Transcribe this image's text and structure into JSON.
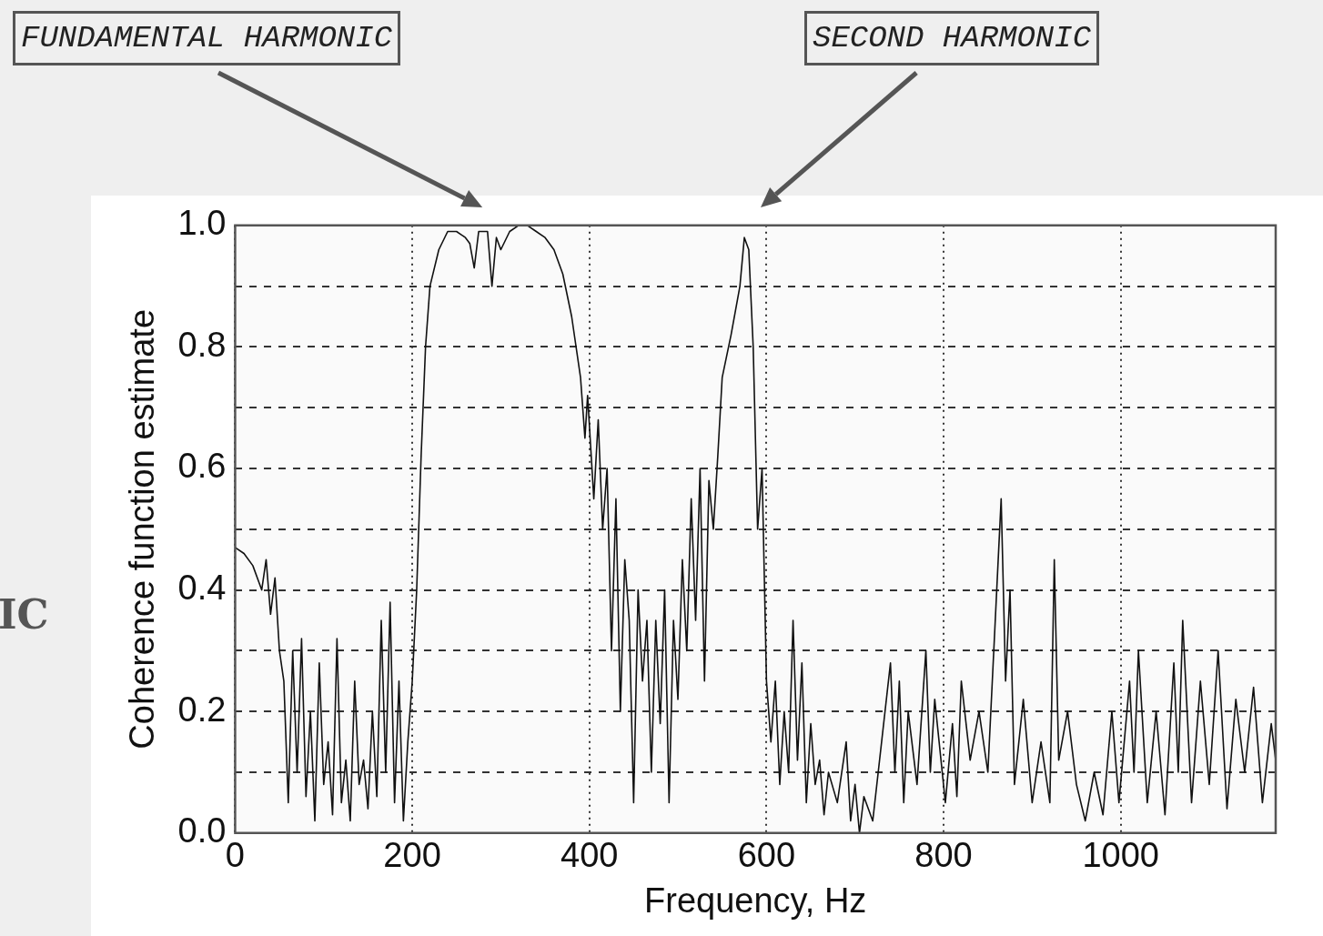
{
  "chart_data": {
    "type": "line",
    "xlabel": "Frequency, Hz",
    "ylabel": "Coherence function estimate",
    "xlim": [
      0,
      1175
    ],
    "ylim": [
      0,
      1.0
    ],
    "xticks": [
      0,
      200,
      400,
      600,
      800,
      1000
    ],
    "yticks": [
      {
        "value": 0,
        "label": "0.0"
      },
      {
        "value": 0.1,
        "label": null
      },
      {
        "value": 0.2,
        "label": "0.2"
      },
      {
        "value": 0.3,
        "label": null
      },
      {
        "value": 0.4,
        "label": "0.4"
      },
      {
        "value": 0.5,
        "label": null
      },
      {
        "value": 0.6,
        "label": "0.6"
      },
      {
        "value": 0.7,
        "label": null
      },
      {
        "value": 0.8,
        "label": "0.8"
      },
      {
        "value": 0.9,
        "label": null
      },
      {
        "value": 1.0,
        "label": "1.0"
      }
    ],
    "grid": true,
    "legend": false,
    "marker": "none",
    "line_style": "solid",
    "annotations": [
      "FUNDAMENTAL HARMONIC",
      "SECOND HARMONIC",
      "IC"
    ],
    "series": [
      {
        "color": "#111111",
        "x": [
          0,
          10,
          20,
          30,
          35,
          40,
          45,
          50,
          55,
          60,
          65,
          70,
          75,
          80,
          85,
          90,
          95,
          100,
          105,
          110,
          115,
          120,
          125,
          130,
          135,
          140,
          145,
          150,
          155,
          160,
          165,
          170,
          175,
          180,
          185,
          190,
          195,
          200,
          205,
          210,
          215,
          220,
          230,
          240,
          250,
          260,
          265,
          270,
          275,
          285,
          290,
          295,
          300,
          310,
          320,
          330,
          340,
          350,
          360,
          370,
          380,
          390,
          395,
          398,
          405,
          410,
          415,
          420,
          425,
          430,
          435,
          440,
          445,
          450,
          455,
          460,
          465,
          470,
          475,
          480,
          485,
          490,
          495,
          500,
          505,
          510,
          515,
          520,
          525,
          530,
          535,
          540,
          545,
          550,
          560,
          570,
          575,
          580,
          585,
          590,
          595,
          600,
          605,
          610,
          615,
          620,
          625,
          630,
          635,
          640,
          645,
          650,
          655,
          660,
          665,
          670,
          680,
          690,
          695,
          700,
          705,
          710,
          720,
          730,
          740,
          745,
          750,
          755,
          760,
          770,
          780,
          785,
          790,
          802,
          810,
          815,
          820,
          830,
          840,
          850,
          860,
          865,
          870,
          875,
          880,
          890,
          900,
          910,
          920,
          925,
          930,
          940,
          950,
          960,
          970,
          980,
          990,
          998,
          1010,
          1015,
          1020,
          1030,
          1040,
          1050,
          1060,
          1065,
          1070,
          1080,
          1090,
          1100,
          1110,
          1120,
          1130,
          1140,
          1150,
          1160,
          1170,
          1175
        ],
        "values": [
          0.47,
          0.46,
          0.44,
          0.4,
          0.45,
          0.36,
          0.42,
          0.3,
          0.25,
          0.05,
          0.3,
          0.1,
          0.32,
          0.06,
          0.2,
          0.02,
          0.28,
          0.08,
          0.15,
          0.03,
          0.32,
          0.05,
          0.12,
          0.02,
          0.25,
          0.08,
          0.12,
          0.04,
          0.2,
          0.06,
          0.35,
          0.1,
          0.38,
          0.05,
          0.25,
          0.02,
          0.15,
          0.25,
          0.4,
          0.62,
          0.8,
          0.9,
          0.96,
          0.99,
          0.99,
          0.98,
          0.97,
          0.93,
          0.99,
          0.99,
          0.9,
          0.98,
          0.96,
          0.99,
          1.0,
          1.0,
          0.99,
          0.98,
          0.96,
          0.92,
          0.85,
          0.75,
          0.65,
          0.72,
          0.55,
          0.68,
          0.5,
          0.6,
          0.3,
          0.55,
          0.2,
          0.45,
          0.35,
          0.05,
          0.4,
          0.25,
          0.35,
          0.1,
          0.35,
          0.18,
          0.4,
          0.05,
          0.35,
          0.22,
          0.45,
          0.3,
          0.55,
          0.35,
          0.6,
          0.25,
          0.58,
          0.5,
          0.62,
          0.75,
          0.82,
          0.9,
          0.98,
          0.96,
          0.8,
          0.5,
          0.6,
          0.25,
          0.15,
          0.25,
          0.08,
          0.2,
          0.1,
          0.35,
          0.12,
          0.28,
          0.05,
          0.18,
          0.08,
          0.12,
          0.03,
          0.1,
          0.05,
          0.15,
          0.02,
          0.08,
          0.0,
          0.06,
          0.02,
          0.15,
          0.28,
          0.1,
          0.25,
          0.05,
          0.2,
          0.08,
          0.3,
          0.1,
          0.22,
          0.05,
          0.18,
          0.06,
          0.25,
          0.12,
          0.2,
          0.1,
          0.4,
          0.55,
          0.25,
          0.4,
          0.08,
          0.22,
          0.05,
          0.15,
          0.05,
          0.45,
          0.12,
          0.2,
          0.08,
          0.02,
          0.1,
          0.03,
          0.2,
          0.05,
          0.25,
          0.1,
          0.3,
          0.05,
          0.2,
          0.03,
          0.28,
          0.1,
          0.35,
          0.05,
          0.25,
          0.08,
          0.3,
          0.04,
          0.22,
          0.1,
          0.24,
          0.05,
          0.18,
          0.12
        ]
      }
    ]
  }
}
